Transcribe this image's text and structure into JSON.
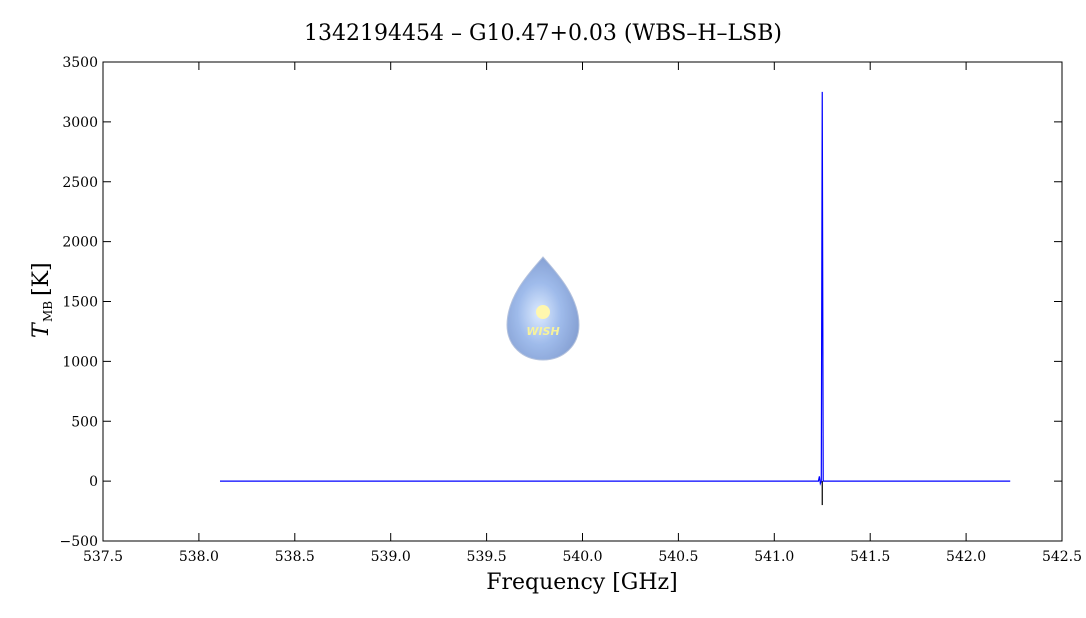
{
  "chart_data": {
    "type": "line",
    "title": "1342194454 – G10.47+0.03 (WBS–H–LSB)",
    "xlabel": "Frequency [GHz]",
    "ylabel": {
      "symbol": "T",
      "subscript": "MB",
      "unit": "[K]"
    },
    "logo_text": "WISH",
    "xlim": [
      537.5,
      542.5
    ],
    "ylim": [
      -500,
      3500
    ],
    "xticks": [
      537.5,
      {
        "value": 538,
        "label": "538.0"
      },
      538.5,
      {
        "value": 539,
        "label": "539.0"
      },
      539.5,
      {
        "value": 540,
        "label": "540.0"
      },
      540.5,
      {
        "value": 541,
        "label": "541.0"
      },
      541.5,
      {
        "value": 542,
        "label": "542.0"
      },
      542.5
    ],
    "yticks": [
      {
        "value": -500,
        "label": "−500"
      },
      0,
      500,
      1000,
      1500,
      2000,
      2500,
      3000,
      3500
    ],
    "series": [
      {
        "color": "#0000ff",
        "x": [
          538.11,
          541.23,
          541.235,
          541.24,
          541.245,
          541.25,
          541.255,
          541.26,
          542.23
        ],
        "values": [
          0,
          0,
          40,
          -20,
          0,
          3250,
          0,
          0,
          0
        ]
      },
      {
        "color": "#000000",
        "x": [
          541.25,
          541.25
        ],
        "values": [
          0,
          -200
        ]
      }
    ]
  }
}
